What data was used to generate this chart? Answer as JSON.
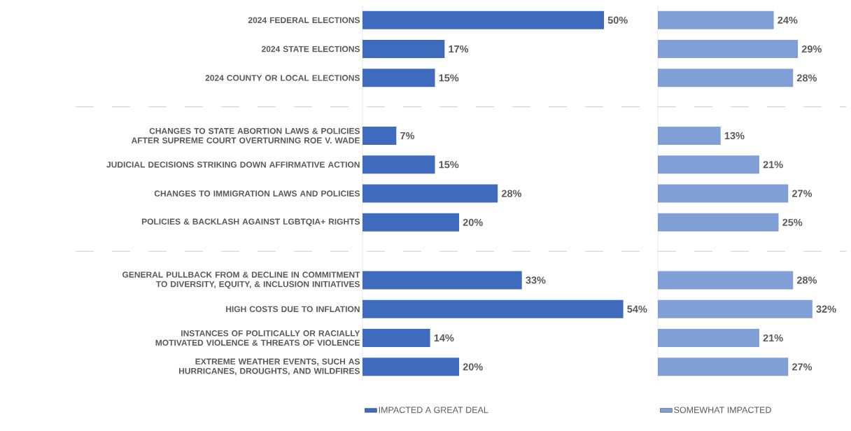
{
  "chart_data": [
    {
      "type": "bar",
      "orientation": "horizontal",
      "legend": "bottom",
      "tick_labels": "y",
      "xlim": [
        0,
        61
      ],
      "categories": [
        "2024 FEDERAL ELECTIONS",
        "2024 STATE ELECTIONS",
        "2024 COUNTY OR LOCAL ELECTIONS",
        null,
        "CHANGES TO STATE ABORTION LAWS & POLICIES AFTER SUPREME COURT OVERTURNING ROE V. WADE",
        "JUDICIAL DECISIONS STRIKING DOWN AFFIRMATIVE ACTION",
        "CHANGES TO IMMIGRATION LAWS AND POLICIES",
        "POLICIES & BACKLASH AGAINST LGBTQIA+ RIGHTS",
        null,
        "GENERAL PULLBACK FROM & DECLINE IN COMMITMENT TO DIVERSITY, EQUITY, & INCLUSION INITIATIVES",
        "HIGH COSTS DUE TO INFLATION",
        "INSTANCES OF POLITICALLY OR RACIALLY MOTIVATED VIOLENCE & THREATS OF VIOLENCE",
        "EXTREME WEATHER EVENTS, SUCH AS HURRICANES, DROUGHTS, AND WILDFIRES"
      ],
      "series": [
        {
          "name": "IMPACTED A GREAT DEAL",
          "color": "#3f6bbf",
          "values": [
            50,
            17,
            15,
            null,
            7,
            15,
            28,
            20,
            null,
            33,
            54,
            14,
            20
          ],
          "value_labels": [
            "50%",
            "17%",
            "15%",
            null,
            "7%",
            "15%",
            "28%",
            "20%",
            null,
            "33%",
            "54%",
            "14%",
            "20%"
          ]
        }
      ]
    },
    {
      "type": "bar",
      "orientation": "horizontal",
      "legend": "bottom",
      "tick_labels": false,
      "xlim": [
        0,
        39
      ],
      "categories": [
        null,
        null,
        null,
        null,
        null,
        null,
        null,
        null,
        null,
        null,
        null,
        null,
        null
      ],
      "series": [
        {
          "name": "SOMEWHAT IMPACTED",
          "color": "#7f9fd6",
          "values": [
            24,
            29,
            28,
            null,
            13,
            21,
            27,
            25,
            null,
            28,
            32,
            21,
            27
          ],
          "value_labels": [
            "24%",
            "29%",
            "28%",
            null,
            "13%",
            "21%",
            "27%",
            "25%",
            null,
            "28%",
            "32%",
            "21%",
            "27%"
          ]
        }
      ]
    }
  ]
}
